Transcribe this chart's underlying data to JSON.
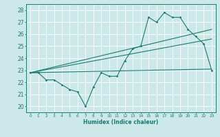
{
  "xlabel": "Humidex (Indice chaleur)",
  "ylabel": "",
  "bg_color": "#cce8e8",
  "grid_color": "#ffffff",
  "line_color": "#1a7a6e",
  "xlim": [
    -0.5,
    23.5
  ],
  "ylim": [
    19.5,
    28.5
  ],
  "xticks": [
    0,
    1,
    2,
    3,
    4,
    5,
    6,
    7,
    8,
    9,
    10,
    11,
    12,
    13,
    14,
    15,
    16,
    17,
    18,
    19,
    20,
    21,
    22,
    23
  ],
  "yticks": [
    20,
    21,
    22,
    23,
    24,
    25,
    26,
    27,
    28
  ],
  "series": [
    {
      "x": [
        0,
        1,
        2,
        3,
        4,
        5,
        6,
        7,
        8,
        9,
        10,
        11,
        12,
        13,
        14,
        15,
        16,
        17,
        18,
        19,
        20,
        21,
        22,
        23
      ],
      "y": [
        22.8,
        22.8,
        22.2,
        22.2,
        21.8,
        21.4,
        21.2,
        20.0,
        21.6,
        22.8,
        22.5,
        22.5,
        23.8,
        24.8,
        25.0,
        27.4,
        27.0,
        27.8,
        27.4,
        27.4,
        26.4,
        25.8,
        25.2,
        23.0
      ],
      "marker": true
    },
    {
      "x": [
        0,
        23
      ],
      "y": [
        22.8,
        26.4
      ],
      "marker": false
    },
    {
      "x": [
        0,
        23
      ],
      "y": [
        22.8,
        25.6
      ],
      "marker": false
    },
    {
      "x": [
        0,
        23
      ],
      "y": [
        22.8,
        23.1
      ],
      "marker": false
    }
  ]
}
